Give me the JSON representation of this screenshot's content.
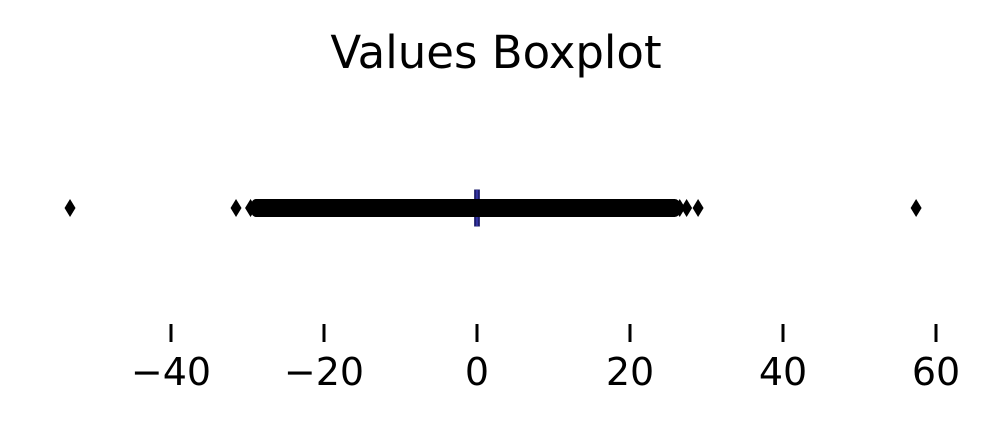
{
  "chart_data": {
    "type": "box",
    "orientation": "horizontal",
    "title": "Values Boxplot",
    "xlabel": "",
    "ylabel": "",
    "xlim": [
      -57,
      62
    ],
    "xticks": [
      -40,
      -20,
      0,
      20,
      40,
      60
    ],
    "xtick_labels": [
      "−40",
      "−20",
      "0",
      "20",
      "40",
      "60"
    ],
    "grid": false,
    "box": {
      "q1": -0.05,
      "median": 0.0,
      "q3": 0.05
    },
    "outliers": [
      -53.2,
      -31.5,
      -29.6,
      -29.0,
      -28.1,
      -27.0,
      -26.1,
      -25.3,
      -24.4,
      -23.4,
      -22.5,
      -20.0,
      -15.0,
      -10.0,
      -5.0,
      5.0,
      10.0,
      15.0,
      20.0,
      23.0,
      24.0,
      25.0,
      25.8,
      26.5,
      27.4,
      28.9,
      57.4
    ],
    "outlier_dense_range": [
      -29.5,
      26.5
    ],
    "colors": {
      "box_edge": "#1f1f6e",
      "outlier": "#000000",
      "median": "#1f1f6e"
    }
  }
}
